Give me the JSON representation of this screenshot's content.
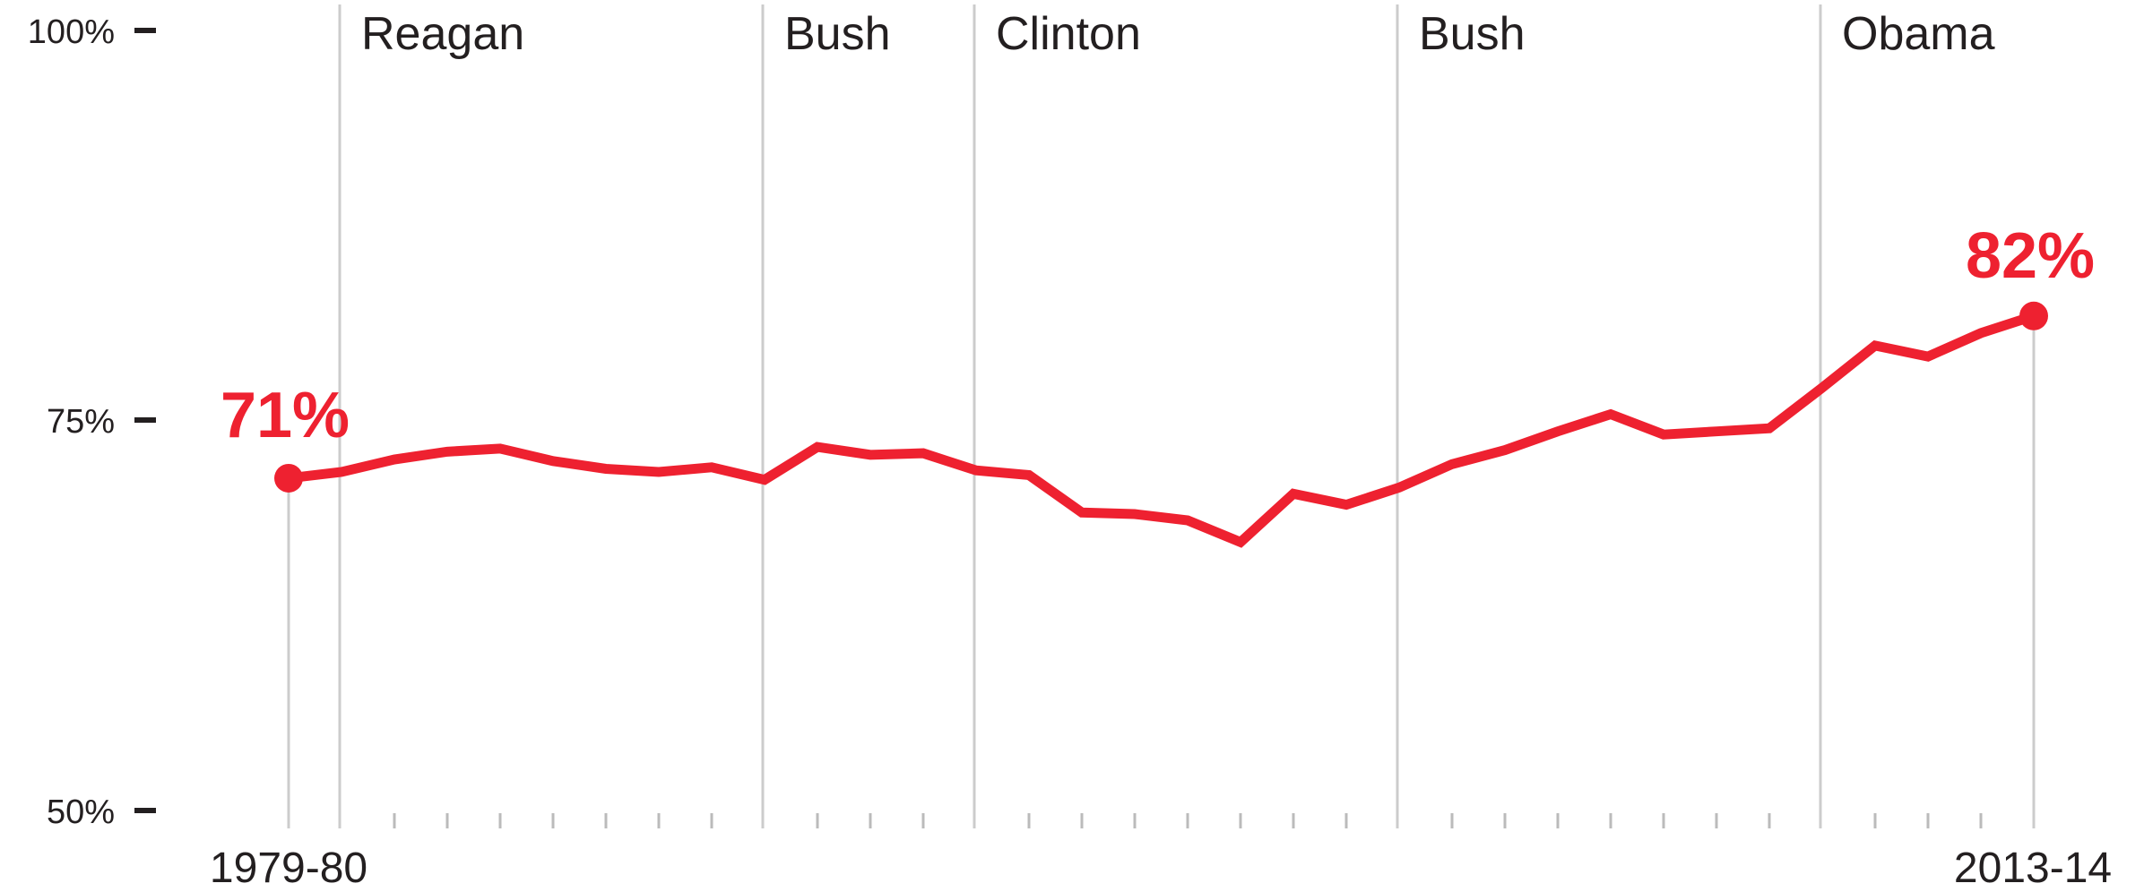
{
  "chart_data": {
    "type": "line",
    "title": "",
    "xlabel": "",
    "ylabel": "",
    "ylim": [
      50,
      100
    ],
    "yticks": [
      {
        "value": 100,
        "label": "100%"
      },
      {
        "value": 75,
        "label": "75%"
      },
      {
        "value": 50,
        "label": "50%"
      }
    ],
    "x_start_label": "1979-80",
    "x_end_label": "2013-14",
    "series": [
      {
        "color": "#ee2130",
        "values": [
          71.3,
          71.7,
          72.5,
          73.0,
          73.2,
          72.4,
          71.9,
          71.7,
          72.0,
          71.2,
          73.3,
          72.8,
          72.9,
          71.8,
          71.5,
          69.1,
          69.0,
          68.6,
          67.2,
          70.3,
          69.6,
          70.7,
          72.2,
          73.1,
          74.3,
          75.4,
          74.1,
          74.3,
          74.5,
          77.1,
          79.8,
          79.1,
          80.6,
          81.7
        ]
      }
    ],
    "start_annotation": "71%",
    "end_annotation": "82%",
    "presidencies": [
      {
        "label": "Reagan",
        "start_index": 1
      },
      {
        "label": "Bush",
        "start_index": 9
      },
      {
        "label": "Clinton",
        "start_index": 13
      },
      {
        "label": "Bush",
        "start_index": 21
      },
      {
        "label": "Obama",
        "start_index": 29
      }
    ],
    "colors": {
      "line": "#ee2130",
      "annotation": "#ee2130",
      "divider": "#cccccc",
      "tick": "#bbbbbb",
      "text": "#231f20"
    }
  }
}
